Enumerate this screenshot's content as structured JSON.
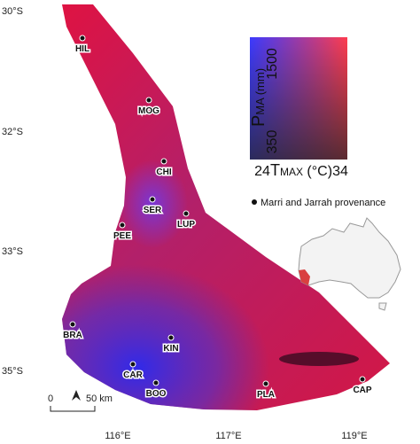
{
  "map": {
    "lat_labels": [
      "30°S",
      "32°S",
      "33°S",
      "35°S"
    ],
    "lon_labels": [
      "116°E",
      "117°E",
      "119°E"
    ],
    "sites": [
      "HIL",
      "MOG",
      "CHI",
      "SER",
      "LUP",
      "PEE",
      "BRA",
      "KIN",
      "CAR",
      "BOO",
      "PLA",
      "CAP"
    ],
    "legend": {
      "y_symbol": "P",
      "y_sub": "MA",
      "y_unit": " (mm)",
      "y_min": "350",
      "y_max": "1500",
      "x_symbol": "T",
      "x_sub": "MAX",
      "x_unit": " (°C)",
      "x_min": "24",
      "x_max": "34",
      "point_label": "Marri and Jarrah provenance"
    },
    "scale_bar": {
      "start": "0",
      "end": "50 km"
    }
  }
}
